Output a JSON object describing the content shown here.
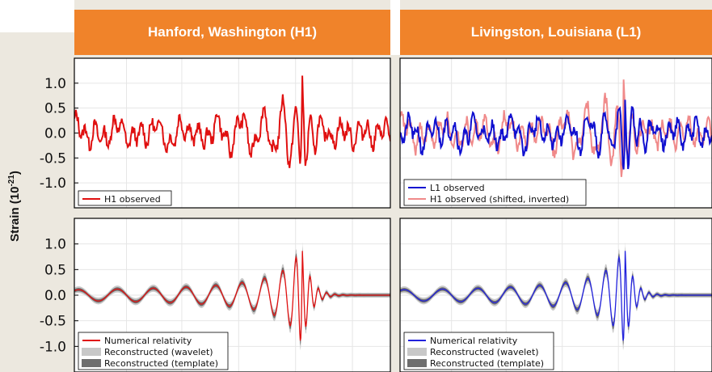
{
  "headers": {
    "left": "Hanford, Washington (H1)",
    "right": "Livingston, Louisiana (L1)"
  },
  "y_axis": {
    "label_main": "Strain (10",
    "label_exp": "-21",
    "label_close": ")"
  },
  "colors": {
    "header": "#f0832a",
    "h1_red": "#e01010",
    "l1_blue": "#1010d0",
    "shifted_pink": "#f08a8a",
    "nr_blue": "#2222dd",
    "wavelet_band": "#c8c8c8",
    "template_band": "#6e6e6e",
    "page_beige": "#ece8df"
  },
  "chart_data": [
    {
      "panel": "top-left",
      "type": "line",
      "ylim": [
        -1.5,
        1.5
      ],
      "xlim": [
        0.25,
        0.46
      ],
      "yticks": [
        "1.0",
        "0.5",
        "0.0",
        "-0.5",
        "-1.0"
      ],
      "ytick_values": [
        1.0,
        0.5,
        0.0,
        -0.5,
        -1.0
      ],
      "series": [
        {
          "name": "H1 observed",
          "color": "#e01010",
          "kind": "noisy_obs"
        }
      ],
      "legend": [
        {
          "label": "H1 observed",
          "style": "line",
          "color": "#e01010"
        }
      ]
    },
    {
      "panel": "top-right",
      "type": "line",
      "ylim": [
        -1.5,
        1.5
      ],
      "xlim": [
        0.25,
        0.46
      ],
      "yticks": [],
      "series": [
        {
          "name": "H1 observed (shifted, inverted)",
          "color": "#f08a8a",
          "kind": "noisy_obs_shift"
        },
        {
          "name": "L1 observed",
          "color": "#1010d0",
          "kind": "noisy_obs"
        }
      ],
      "legend": [
        {
          "label": "L1 observed",
          "style": "line",
          "color": "#1010d0"
        },
        {
          "label": "H1 observed (shifted, inverted)",
          "style": "line",
          "color": "#f08a8a"
        }
      ]
    },
    {
      "panel": "bottom-left",
      "type": "area",
      "ylim": [
        -1.5,
        1.5
      ],
      "xlim": [
        0.25,
        0.46
      ],
      "yticks": [
        "1.0",
        "0.5",
        "0.0",
        "-0.5",
        "-1.0"
      ],
      "ytick_values": [
        1.0,
        0.5,
        0.0,
        -0.5,
        -1.0
      ],
      "series": [
        {
          "name": "Reconstructed (wavelet)",
          "color": "#c8c8c8",
          "kind": "band_wide"
        },
        {
          "name": "Reconstructed (template)",
          "color": "#6e6e6e",
          "kind": "band_narrow"
        },
        {
          "name": "Numerical relativity",
          "color": "#e01010",
          "kind": "chirp"
        }
      ],
      "legend": [
        {
          "label": "Numerical relativity",
          "style": "line",
          "color": "#e01010"
        },
        {
          "label": "Reconstructed (wavelet)",
          "style": "box",
          "color": "#c8c8c8"
        },
        {
          "label": "Reconstructed (template)",
          "style": "box",
          "color": "#6e6e6e"
        }
      ]
    },
    {
      "panel": "bottom-right",
      "type": "area",
      "ylim": [
        -1.5,
        1.5
      ],
      "xlim": [
        0.25,
        0.46
      ],
      "yticks": [],
      "series": [
        {
          "name": "Reconstructed (wavelet)",
          "color": "#c8c8c8",
          "kind": "band_wide"
        },
        {
          "name": "Reconstructed (template)",
          "color": "#6e6e6e",
          "kind": "band_narrow"
        },
        {
          "name": "Numerical relativity",
          "color": "#2222dd",
          "kind": "chirp"
        }
      ],
      "legend": [
        {
          "label": "Numerical relativity",
          "style": "line",
          "color": "#2222dd"
        },
        {
          "label": "Reconstructed (wavelet)",
          "style": "box",
          "color": "#c8c8c8"
        },
        {
          "label": "Reconstructed (template)",
          "style": "box",
          "color": "#6e6e6e"
        }
      ]
    }
  ]
}
